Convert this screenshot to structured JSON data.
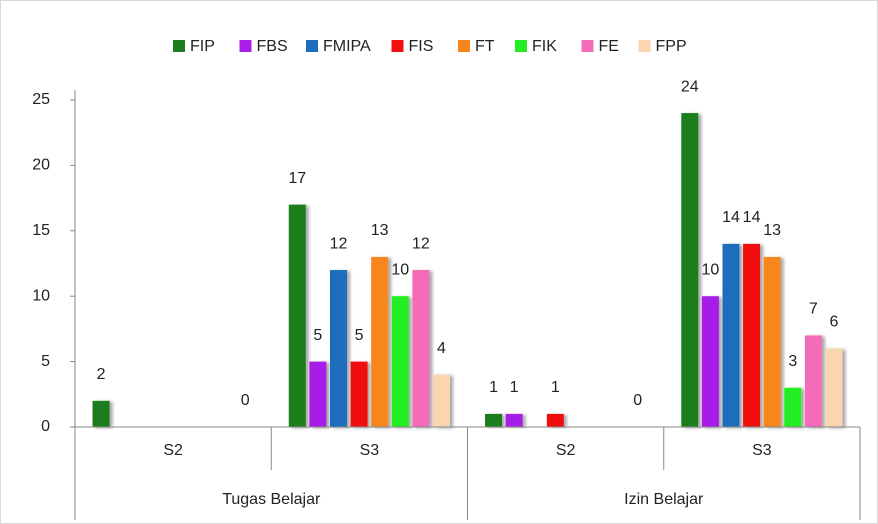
{
  "chart_data": {
    "type": "bar",
    "categories": [
      "S2",
      "S3",
      "S2",
      "S3"
    ],
    "category_groups": [
      "Tugas Belajar",
      "Izin Belajar"
    ],
    "series": [
      {
        "name": "FIP",
        "color": "#1e7d1e",
        "values": [
          2,
          17,
          1,
          24
        ]
      },
      {
        "name": "FBS",
        "color": "#a81ee8",
        "values": [
          null,
          5,
          1,
          10
        ]
      },
      {
        "name": "FMIPA",
        "color": "#1f6ebd",
        "values": [
          null,
          12,
          null,
          14
        ]
      },
      {
        "name": "FIS",
        "color": "#f01010",
        "values": [
          null,
          5,
          1,
          14
        ]
      },
      {
        "name": "FT",
        "color": "#f7861a",
        "values": [
          null,
          13,
          null,
          13
        ]
      },
      {
        "name": "FIK",
        "color": "#22ee22",
        "values": [
          null,
          10,
          null,
          3
        ]
      },
      {
        "name": "FE",
        "color": "#f46cb8",
        "values": [
          null,
          12,
          null,
          7
        ]
      },
      {
        "name": "FPP",
        "color": "#fbd4b0",
        "values": [
          0,
          4,
          0,
          6
        ]
      }
    ],
    "ylim": [
      0,
      25
    ],
    "yticks": [
      0,
      5,
      10,
      15,
      20,
      25
    ],
    "legend": "top"
  }
}
